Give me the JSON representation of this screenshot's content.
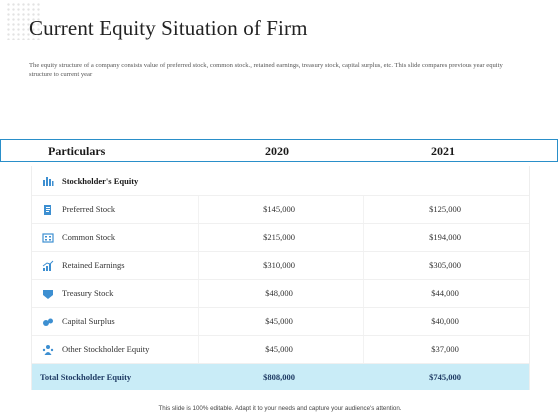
{
  "slide": {
    "title": "Current Equity Situation of Firm",
    "description": "The equity structure of a company consists value of  preferred stock, common stock., retained earnings, treasury stock, capital surplus, etc. This slide compares previous year equity structure to current year",
    "footer": "This slide is 100% editable. Adapt it to your needs and capture your audience's attention."
  },
  "table": {
    "headers": [
      "Particulars",
      "2020",
      "2021"
    ],
    "group_label": "Stockholder's Equity",
    "rows": [
      {
        "label": "Preferred Stock",
        "v2020": "$145,000",
        "v2021": "$125,000",
        "icon": "document-icon"
      },
      {
        "label": "Common Stock",
        "v2020": "$215,000",
        "v2021": "$194,000",
        "icon": "grid-icon"
      },
      {
        "label": "Retained Earnings",
        "v2020": "$310,000",
        "v2021": "$305,000",
        "icon": "growth-chart-icon"
      },
      {
        "label": "Treasury Stock",
        "v2020": "$48,000",
        "v2021": "$44,000",
        "icon": "vault-icon"
      },
      {
        "label": "Capital Surplus",
        "v2020": "$45,000",
        "v2021": "$40,000",
        "icon": "coins-icon"
      },
      {
        "label": "Other Stockholder Equity",
        "v2020": "$45,000",
        "v2021": "$37,000",
        "icon": "people-icon"
      }
    ],
    "total": {
      "label": "Total Stockholder Equity",
      "v2020": "$808,000",
      "v2021": "$745,000"
    }
  },
  "colors": {
    "accent": "#2a8fc9",
    "icon": "#3d8fd1",
    "total_bg": "#c9ecf7",
    "total_text": "#1f3b64"
  }
}
